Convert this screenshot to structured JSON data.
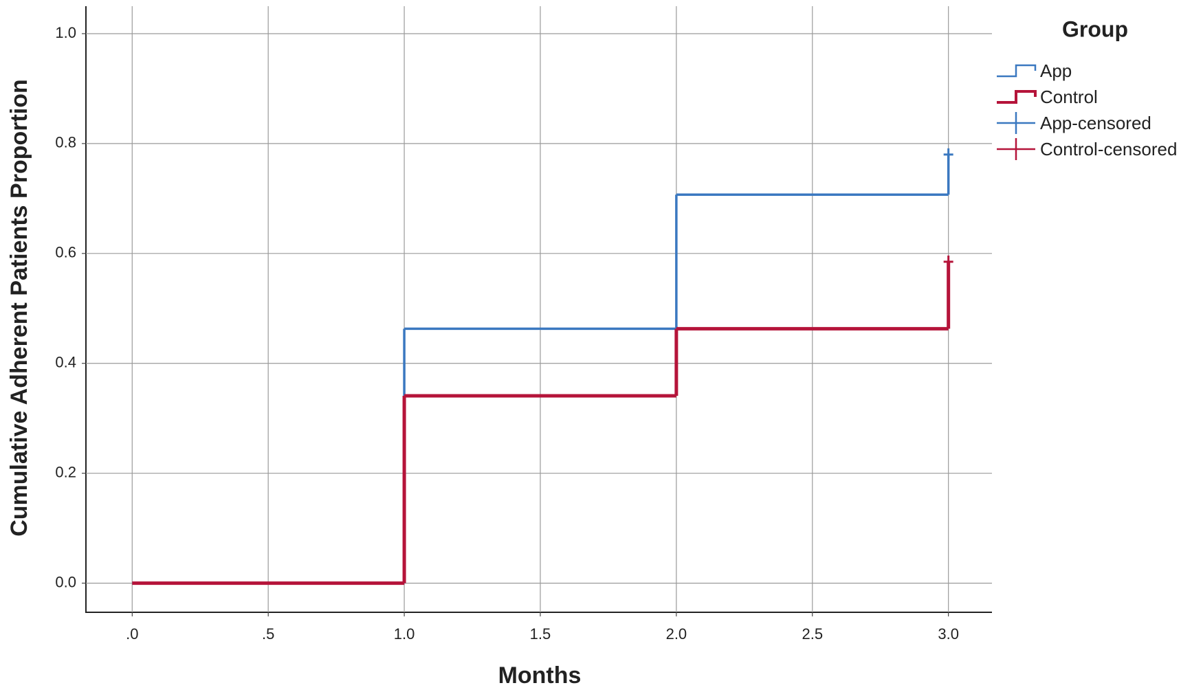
{
  "chart_data": {
    "type": "step",
    "xlabel": "Months",
    "ylabel": "Cumulative Adherent Patients Proportion",
    "legend_title": "Group",
    "legend": "right",
    "grid": true,
    "xlim": [
      -0.17,
      3.16
    ],
    "ylim": [
      -0.053,
      1.05
    ],
    "xticks": [
      {
        "value": 0,
        "label": ".0"
      },
      {
        "value": 0.5,
        "label": ".5"
      },
      {
        "value": 1,
        "label": "1.0"
      },
      1.5,
      {
        "value": 2,
        "label": "2.0"
      },
      2.5,
      {
        "value": 3,
        "label": "3.0"
      }
    ],
    "yticks": [
      {
        "value": 0,
        "label": "0.0"
      },
      0.2,
      0.4,
      0.6,
      0.8,
      {
        "value": 1,
        "label": "1.0"
      }
    ],
    "series": [
      {
        "name": "App",
        "color": "#3a78c0",
        "x": [
          0,
          1,
          2,
          3
        ],
        "values": [
          0,
          0.463,
          0.707,
          0.78
        ]
      },
      {
        "name": "Control",
        "color": "#b5143a",
        "x": [
          0,
          1,
          2,
          3
        ],
        "values": [
          0,
          0.341,
          0.463,
          0.585
        ]
      },
      {
        "name": "App-censored",
        "color": "#3a78c0",
        "x": [
          3
        ],
        "values": [
          0.78
        ]
      },
      {
        "name": "Control-censored",
        "color": "#b5143a",
        "x": [
          3
        ],
        "values": [
          0.585
        ]
      }
    ]
  }
}
